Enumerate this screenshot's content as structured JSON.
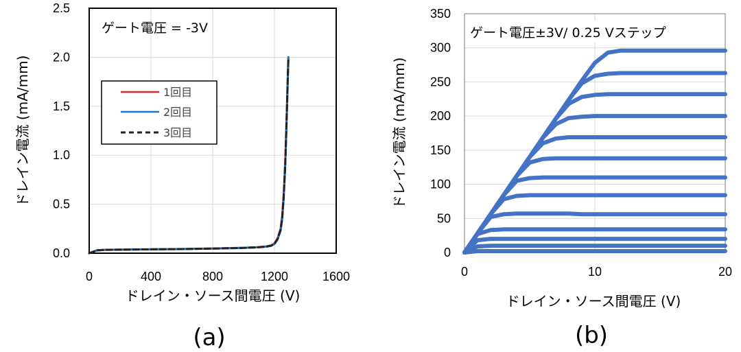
{
  "chart_data": [
    {
      "type": "line",
      "caption": "(a)",
      "annotation": "ゲート電圧 = -3V",
      "xlabel": "ドレイン・ソース間電圧 (V)",
      "ylabel": "ドレイン電流 (mA/mm)",
      "xlim": [
        0,
        1600
      ],
      "ylim": [
        0,
        2.5
      ],
      "xticks": [
        "0",
        "400",
        "800",
        "1200",
        "1600"
      ],
      "yticks": [
        "0.0",
        "0.5",
        "1.0",
        "1.5",
        "2.0",
        "2.5"
      ],
      "grid": true,
      "legend_position": "left",
      "x": [
        0,
        50,
        100,
        200,
        400,
        600,
        800,
        1000,
        1100,
        1150,
        1180,
        1200,
        1220,
        1240,
        1250,
        1260,
        1270,
        1280,
        1290
      ],
      "series": [
        {
          "name": "1回目",
          "color": "#e3262a",
          "dash": "solid",
          "values": [
            0,
            0.03,
            0.035,
            0.037,
            0.04,
            0.043,
            0.048,
            0.055,
            0.062,
            0.07,
            0.08,
            0.1,
            0.15,
            0.25,
            0.38,
            0.6,
            0.95,
            1.45,
            2.0
          ]
        },
        {
          "name": "2回目",
          "color": "#1a78c8",
          "dash": "solid",
          "values": [
            0,
            0.028,
            0.033,
            0.036,
            0.039,
            0.042,
            0.047,
            0.054,
            0.06,
            0.067,
            0.076,
            0.094,
            0.14,
            0.23,
            0.35,
            0.56,
            0.9,
            1.4,
            2.0
          ]
        },
        {
          "name": "3回目",
          "color": "#222222",
          "dash": "dashed",
          "values": [
            0,
            0.029,
            0.034,
            0.036,
            0.039,
            0.042,
            0.047,
            0.054,
            0.061,
            0.068,
            0.078,
            0.097,
            0.145,
            0.24,
            0.36,
            0.58,
            0.92,
            1.42,
            2.0
          ]
        }
      ]
    },
    {
      "type": "line",
      "caption": "(b)",
      "annotation": "ゲート電圧±3V/ 0.25 Vステップ",
      "xlabel": "ドレイン・ソース間電圧 (V)",
      "ylabel": "ドレイン電流 (mA/mm)",
      "xlim": [
        0,
        20
      ],
      "ylim": [
        0,
        350
      ],
      "xticks": [
        "0",
        "10",
        "20"
      ],
      "yticks": [
        "0",
        "50",
        "100",
        "150",
        "200",
        "250",
        "300",
        "350"
      ],
      "grid": true,
      "series_color": "#4472c4",
      "x": [
        0,
        1,
        2,
        3,
        4,
        5,
        6,
        7,
        8,
        9,
        10,
        11,
        12,
        13,
        14,
        15,
        16,
        17,
        18,
        19,
        20
      ],
      "series": [
        {
          "values": [
            0,
            2,
            2,
            2,
            2,
            2,
            2,
            2,
            2,
            2,
            2,
            2,
            2,
            2,
            2,
            2,
            2,
            2,
            2,
            2,
            2
          ]
        },
        {
          "values": [
            0,
            9,
            10,
            10,
            10,
            10,
            10,
            10,
            10,
            10,
            10,
            10,
            10,
            10,
            10,
            10,
            10,
            10,
            10,
            10,
            10
          ]
        },
        {
          "values": [
            0,
            18,
            20,
            20,
            20,
            20,
            20,
            20,
            20,
            20,
            20,
            20,
            20,
            20,
            20,
            20,
            20,
            20,
            20,
            20,
            20
          ]
        },
        {
          "values": [
            0,
            27,
            33,
            34,
            34,
            34,
            34,
            34,
            34,
            34,
            34,
            34,
            34,
            34,
            34,
            34,
            34,
            34,
            34,
            34,
            34
          ]
        },
        {
          "values": [
            0,
            28,
            52,
            56,
            57,
            57,
            57,
            57,
            57,
            56,
            56,
            56,
            56,
            56,
            56,
            56,
            56,
            56,
            56,
            56,
            56
          ]
        },
        {
          "values": [
            0,
            28,
            56,
            78,
            83,
            84,
            84,
            84,
            84,
            84,
            84,
            84,
            84,
            84,
            84,
            84,
            84,
            84,
            84,
            84,
            84
          ]
        },
        {
          "values": [
            0,
            28,
            56,
            84,
            105,
            109,
            110,
            110,
            110,
            110,
            110,
            110,
            110,
            110,
            110,
            110,
            110,
            110,
            110,
            110,
            110
          ]
        },
        {
          "values": [
            0,
            28,
            56,
            84,
            112,
            132,
            137,
            138,
            138,
            138,
            138,
            138,
            138,
            138,
            138,
            138,
            138,
            138,
            138,
            138,
            138
          ]
        },
        {
          "values": [
            0,
            28,
            56,
            84,
            112,
            140,
            160,
            167,
            169,
            169,
            169,
            169,
            169,
            169,
            169,
            169,
            169,
            169,
            169,
            169,
            169
          ]
        },
        {
          "values": [
            0,
            28,
            56,
            84,
            112,
            140,
            168,
            188,
            197,
            199,
            200,
            200,
            200,
            200,
            200,
            200,
            200,
            200,
            200,
            200,
            200
          ]
        },
        {
          "values": [
            0,
            28,
            56,
            84,
            112,
            140,
            168,
            196,
            218,
            228,
            231,
            232,
            232,
            232,
            232,
            232,
            232,
            232,
            232,
            232,
            232
          ]
        },
        {
          "values": [
            0,
            28,
            56,
            84,
            112,
            140,
            168,
            196,
            224,
            248,
            259,
            262,
            263,
            263,
            263,
            263,
            263,
            263,
            263,
            263,
            263
          ]
        },
        {
          "values": [
            0,
            28,
            56,
            84,
            112,
            140,
            168,
            196,
            224,
            252,
            278,
            293,
            296,
            296,
            296,
            296,
            296,
            296,
            296,
            296,
            296
          ]
        }
      ]
    }
  ]
}
